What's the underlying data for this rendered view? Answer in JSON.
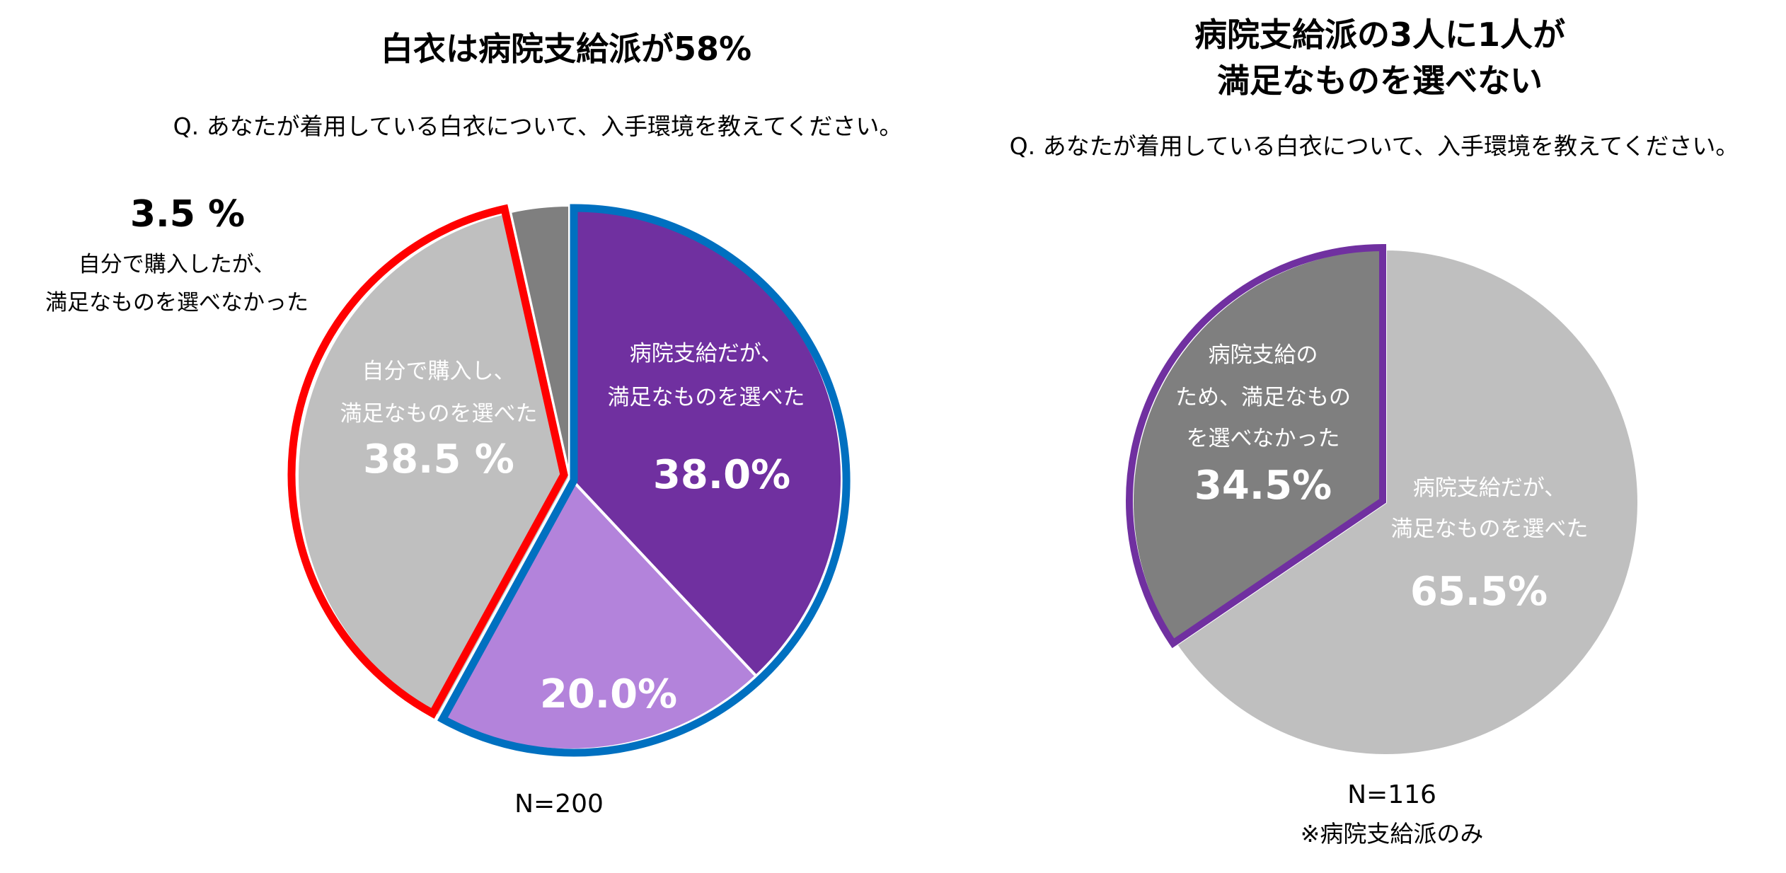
{
  "chart_data": [
    {
      "type": "pie",
      "title": "白衣は病院支給派が58%",
      "subtitle": "Q. あなたが着用している白衣について、入手環境を教えてください。",
      "note": "N=200",
      "colors": {
        "outline_hospital": "#0070C0",
        "outline_self": "#FF0000"
      },
      "slices": [
        {
          "label_lines": [
            "病院支給だが、",
            "満足なものを選べた"
          ],
          "value": 38.0,
          "value_text": "38.0%",
          "color": "#7030A0"
        },
        {
          "label_lines": [],
          "value": 20.0,
          "value_text": "20.0%",
          "color": "#B383DB"
        },
        {
          "label_lines": [
            "自分で購入し、",
            "満足なものを選べた"
          ],
          "value": 38.5,
          "value_text": "38.5 %",
          "color": "#BFBFBF"
        },
        {
          "label_lines": [
            "自分で購入したが、",
            "満足なものを選べなかった"
          ],
          "value": 3.5,
          "value_text": "3.5 %",
          "color": "#7F7F7F"
        }
      ]
    },
    {
      "type": "pie",
      "title_lines": [
        "病院支給派の3人に1人が",
        "満足なものを選べない"
      ],
      "subtitle": "Q. あなたが着用している白衣について、入手環境を教えてください。",
      "note_lines": [
        "N=116",
        "※病院支給派のみ"
      ],
      "colors": {
        "outline_highlight": "#7030A0"
      },
      "slices": [
        {
          "label_lines": [
            "病院支給だが、",
            "満足なものを選べた"
          ],
          "value": 65.5,
          "value_text": "65.5%",
          "color": "#BFBFBF"
        },
        {
          "label_lines": [
            "病院支給の",
            "ため、満足なもの",
            "を選べなかった"
          ],
          "value": 34.5,
          "value_text": "34.5%",
          "color": "#7F7F7F"
        }
      ]
    }
  ]
}
